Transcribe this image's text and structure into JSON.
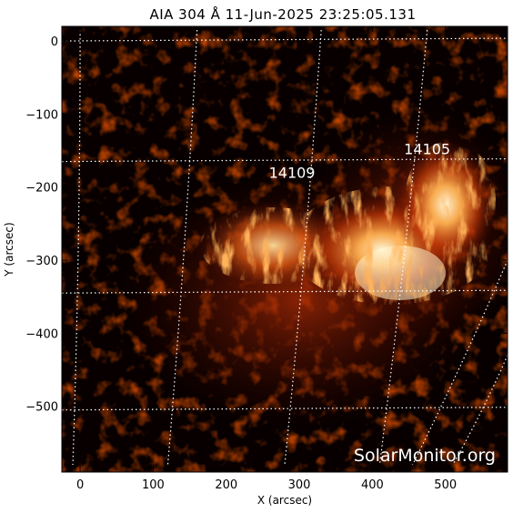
{
  "title": "AIA 304 Å 11-Jun-2025 23:25:05.131",
  "x_axis": {
    "label": "X (arcsec)",
    "range": [
      -25,
      585
    ],
    "ticks": [
      0,
      100,
      200,
      300,
      400,
      500
    ],
    "tick_labels": [
      "0",
      "100",
      "200",
      "300",
      "400",
      "500"
    ]
  },
  "y_axis": {
    "label": "Y (arcsec)",
    "range": [
      -590,
      20
    ],
    "ticks": [
      0,
      -100,
      -200,
      -300,
      -400,
      -500
    ],
    "tick_labels": [
      "0",
      "−100",
      "−200",
      "−300",
      "−400",
      "−500"
    ]
  },
  "active_regions": [
    {
      "label": "14109",
      "x": 290,
      "y": -187
    },
    {
      "label": "14105",
      "x": 475,
      "y": -155
    }
  ],
  "watermark": "SolarMonitor.org",
  "colors": {
    "background": "#ffffff",
    "plot_background": "#080000",
    "emission_low": "#5a0a00",
    "emission_mid": "#d24a10",
    "emission_high": "#fff2c4",
    "grid": "#ffffff",
    "text": "#000000"
  }
}
